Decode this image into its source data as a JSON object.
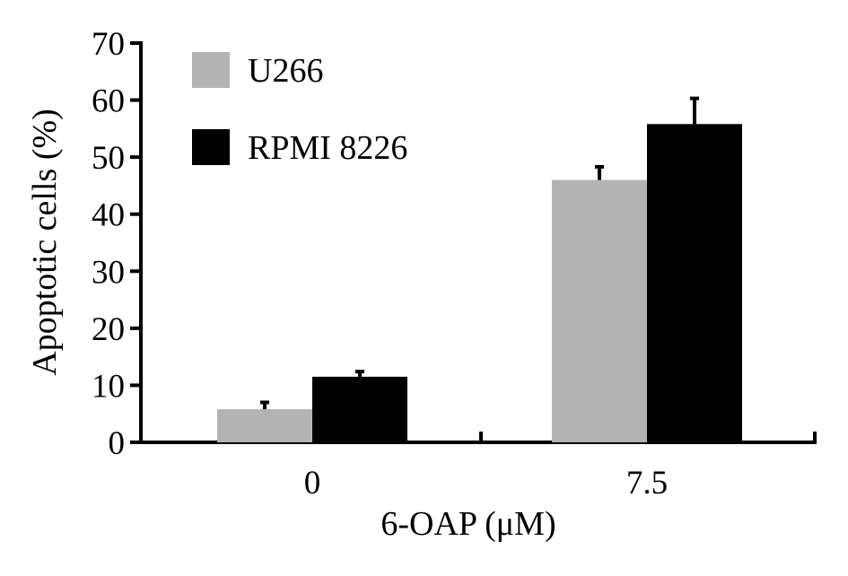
{
  "chart_data": {
    "type": "bar",
    "title": "",
    "xlabel": "6-OAP (μM)",
    "ylabel": "Apoptotic cells (%)",
    "categories": [
      "0",
      "7.5"
    ],
    "series": [
      {
        "name": "U266",
        "values": [
          5.8,
          46.0
        ],
        "errors": [
          1.2,
          2.3
        ],
        "color": "#b3b3b3"
      },
      {
        "name": "RPMI 8226",
        "values": [
          11.5,
          55.8
        ],
        "errors": [
          0.9,
          4.5
        ],
        "color": "#000000"
      }
    ],
    "ylim": [
      0,
      70
    ],
    "yticks": [
      0,
      10,
      20,
      30,
      40,
      50,
      60,
      70
    ],
    "grid": false,
    "legend_position": "top-left"
  }
}
